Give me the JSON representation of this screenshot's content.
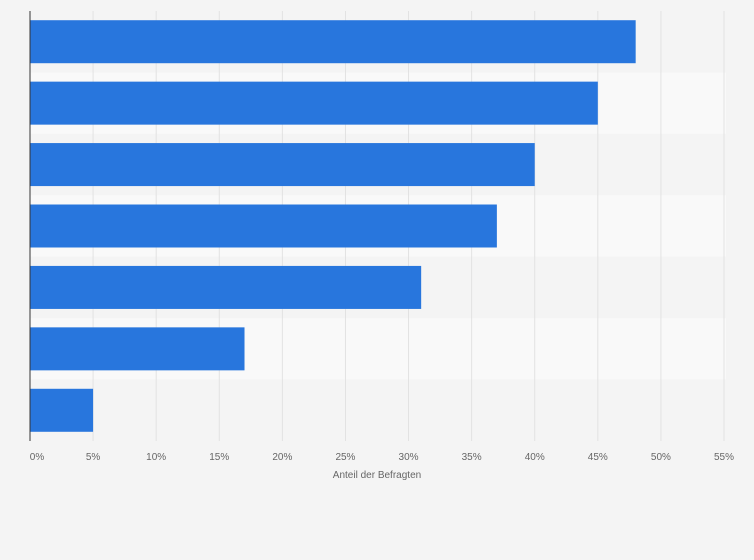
{
  "chart_data": {
    "type": "bar",
    "orientation": "horizontal",
    "categories": [
      "",
      "",
      "",
      "",
      "",
      "",
      ""
    ],
    "values": [
      48,
      45,
      40,
      37,
      31,
      17,
      5
    ],
    "value_unit": "%",
    "xlabel": "Anteil der Befragten",
    "ylabel": "",
    "xlim": [
      0,
      55
    ],
    "xticks": [
      0,
      5,
      10,
      15,
      20,
      25,
      30,
      35,
      40,
      45,
      50,
      55
    ],
    "xtick_labels": [
      "0%",
      "5%",
      "10%",
      "15%",
      "20%",
      "25%",
      "30%",
      "35%",
      "40%",
      "45%",
      "50%",
      "55%"
    ],
    "grid": true,
    "legend": "none"
  },
  "colors": {
    "bar": "#2876dd",
    "background": "#f4f4f4",
    "band_light": "#f9f9f9",
    "band_dark": "#f4f4f4",
    "grid": "#e2e2e2",
    "axis": "#333333",
    "text": "#666666"
  }
}
